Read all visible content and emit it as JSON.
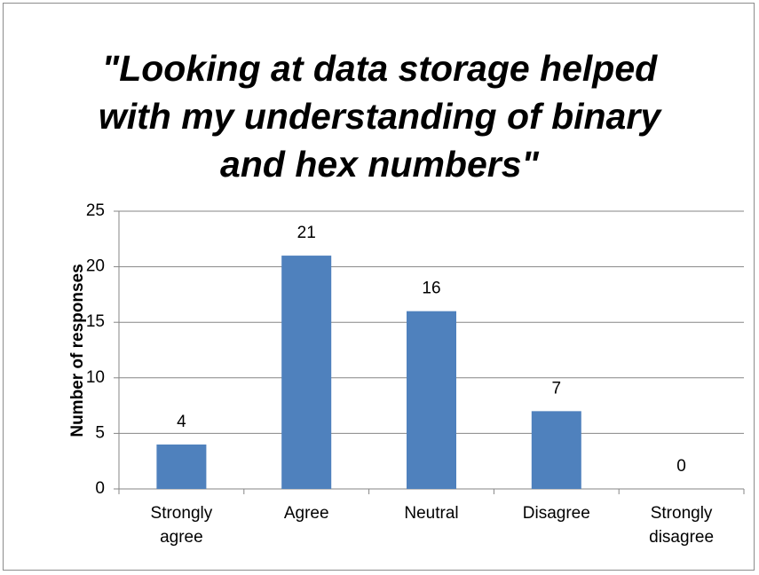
{
  "chart_data": {
    "type": "bar",
    "title": "\"Looking at data storage helped with my understanding of binary and hex numbers\"",
    "y_label": "Number of responses",
    "categories": [
      "Strongly agree",
      "Agree",
      "Neutral",
      "Disagree",
      "Strongly disagree"
    ],
    "values": [
      4,
      21,
      16,
      7,
      0
    ],
    "color": "#4f81bd",
    "ylim": [
      0,
      25
    ],
    "yticks": [
      0,
      5,
      10,
      15,
      20,
      25
    ],
    "grid": true
  }
}
